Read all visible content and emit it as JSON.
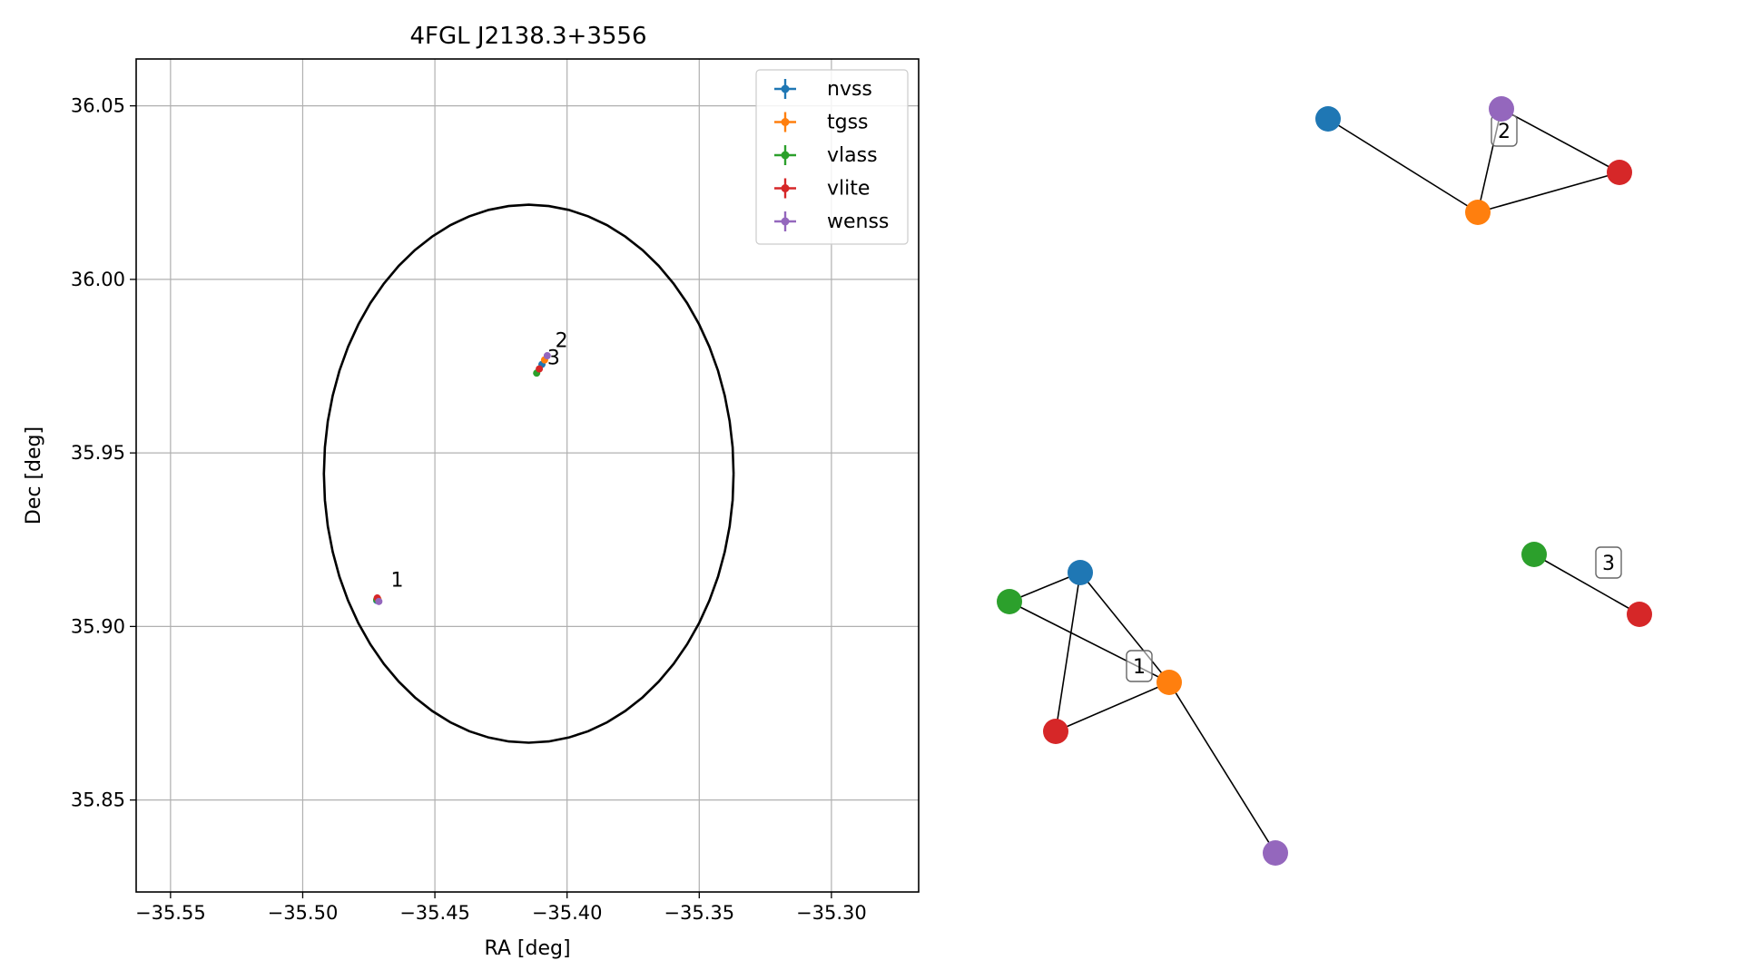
{
  "colors": {
    "nvss": "#1f77b4",
    "tgss": "#ff7f0e",
    "vlass": "#2ca02c",
    "vlite": "#d62728",
    "wenss": "#9467bd"
  },
  "chart_data": [
    {
      "type": "scatter",
      "title": "4FGL J2138.3+3556",
      "xlabel": "RA [deg]",
      "ylabel": "Dec [deg]",
      "xlim": [
        -35.563,
        -35.267
      ],
      "ylim": [
        35.8235,
        36.0635
      ],
      "xticks": [
        -35.55,
        -35.5,
        -35.45,
        -35.4,
        -35.35,
        -35.3
      ],
      "xtick_labels": [
        "−35.55",
        "−35.50",
        "−35.45",
        "−35.40",
        "−35.35",
        "−35.30"
      ],
      "yticks": [
        35.85,
        35.9,
        35.95,
        36.0,
        36.05
      ],
      "ytick_labels": [
        "35.85",
        "35.90",
        "35.95",
        "36.00",
        "36.05"
      ],
      "grid": true,
      "legend_position": "top-right",
      "circle": {
        "center": [
          -35.4145,
          35.944
        ],
        "radius": 0.0775
      },
      "series": [
        {
          "name": "nvss",
          "points": [
            [
              -35.472,
              35.9075
            ],
            [
              -35.4095,
              35.9755
            ]
          ]
        },
        {
          "name": "tgss",
          "points": [
            [
              -35.4715,
              35.9078
            ],
            [
              -35.4085,
              35.9768
            ]
          ]
        },
        {
          "name": "vlass",
          "points": [
            [
              -35.472,
              35.9077
            ],
            [
              -35.4115,
              35.973
            ]
          ]
        },
        {
          "name": "vlite",
          "points": [
            [
              -35.4718,
              35.9082
            ],
            [
              -35.4105,
              35.9742
            ]
          ]
        },
        {
          "name": "wenss",
          "points": [
            [
              -35.4712,
              35.9072
            ],
            [
              -35.4075,
              35.978
            ]
          ]
        }
      ],
      "annotations": [
        {
          "text": "1",
          "x": -35.4667,
          "y": 35.9115
        },
        {
          "text": "2",
          "x": -35.4045,
          "y": 35.9805
        },
        {
          "text": "3",
          "x": -35.4075,
          "y": 35.9755
        }
      ]
    },
    {
      "type": "network",
      "nodes": [
        {
          "id": "n2-nvss",
          "group": "nvss"
        },
        {
          "id": "n2-wenss",
          "group": "wenss"
        },
        {
          "id": "n2-vlite",
          "group": "vlite"
        },
        {
          "id": "n2-tgss",
          "group": "tgss"
        },
        {
          "id": "n1-nvss",
          "group": "nvss"
        },
        {
          "id": "n1-vlass",
          "group": "vlass"
        },
        {
          "id": "n1-tgss",
          "group": "tgss"
        },
        {
          "id": "n1-vlite",
          "group": "vlite"
        },
        {
          "id": "n1-wenss",
          "group": "wenss"
        },
        {
          "id": "n3-vlass",
          "group": "vlass"
        },
        {
          "id": "n3-vlite",
          "group": "vlite"
        }
      ],
      "edges": [
        [
          "n2-nvss",
          "n2-tgss"
        ],
        [
          "n2-wenss",
          "n2-tgss"
        ],
        [
          "n2-wenss",
          "n2-vlite"
        ],
        [
          "n2-tgss",
          "n2-vlite"
        ],
        [
          "n1-vlass",
          "n1-nvss"
        ],
        [
          "n1-vlass",
          "n1-tgss"
        ],
        [
          "n1-nvss",
          "n1-tgss"
        ],
        [
          "n1-nvss",
          "n1-vlite"
        ],
        [
          "n1-vlite",
          "n1-tgss"
        ],
        [
          "n1-tgss",
          "n1-wenss"
        ],
        [
          "n3-vlass",
          "n3-vlite"
        ]
      ],
      "labels": [
        "1",
        "2",
        "3"
      ]
    }
  ]
}
